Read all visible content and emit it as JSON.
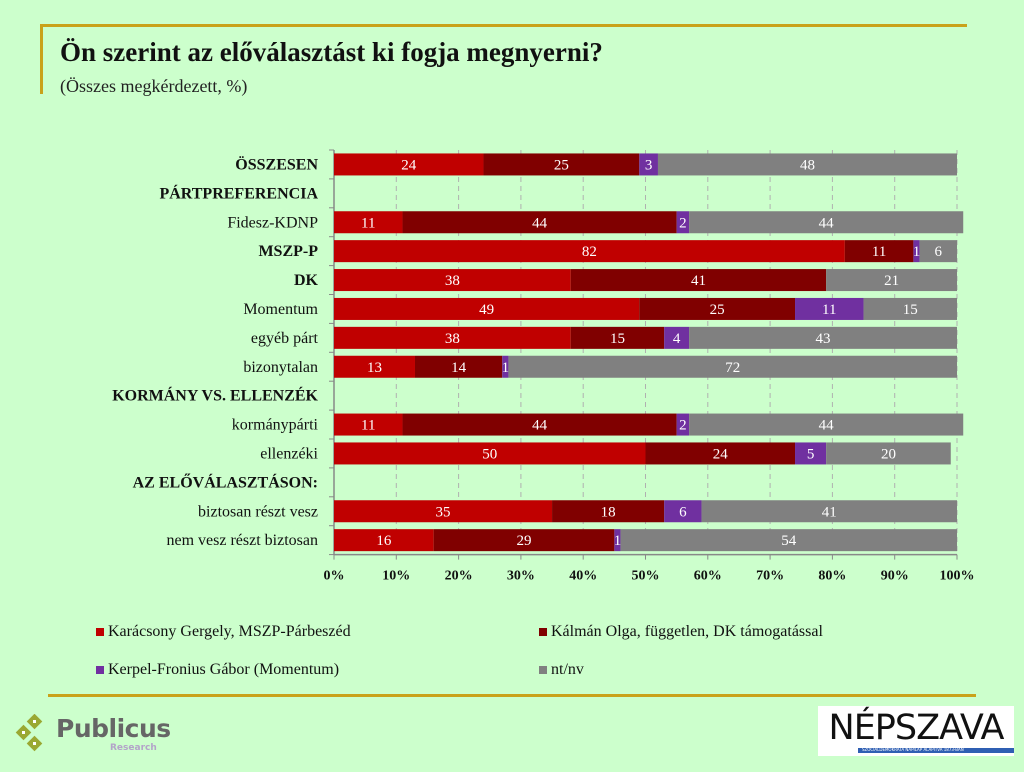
{
  "header": {
    "title": "Ön szerint az előválasztást ki fogja megnyerni?",
    "subtitle": "(Összes megkérdezett, %)"
  },
  "chart_data": {
    "type": "bar",
    "orientation": "horizontal",
    "stacked": "percent",
    "title": "Ön szerint az előválasztást ki fogja megnyerni?",
    "subtitle": "(Összes megkérdezett, %)",
    "categories": [
      "ÖSSZESEN",
      "PÁRTPREFERENCIA",
      "Fidesz-KDNP",
      "MSZP-P",
      "DK",
      "Momentum",
      "egyéb párt",
      "bizonytalan",
      "KORMÁNY VS. ELLENZÉK",
      "kormánypárti",
      "ellenzéki",
      "AZ ELŐVÁLASZTÁSON:",
      "biztosan részt vesz",
      "nem vesz részt biztosan"
    ],
    "bold_categories": [
      "ÖSSZESEN",
      "PÁRTPREFERENCIA",
      "MSZP-P",
      "DK",
      "KORMÁNY VS. ELLENZÉK",
      "AZ ELŐVÁLASZTÁSON:"
    ],
    "series": [
      {
        "name": "Karácsony Gergely, MSZP-Párbeszéd",
        "color": "#c00000",
        "values": [
          24,
          null,
          11,
          82,
          38,
          49,
          38,
          13,
          null,
          11,
          50,
          null,
          35,
          16
        ]
      },
      {
        "name": "Kálmán Olga, független, DK támogatással",
        "color": "#800000",
        "values": [
          25,
          null,
          44,
          11,
          41,
          25,
          15,
          14,
          null,
          44,
          24,
          null,
          18,
          29
        ]
      },
      {
        "name": "Kerpel-Fronius Gábor (Momentum)",
        "color": "#7030a0",
        "values": [
          3,
          null,
          2,
          1,
          null,
          11,
          4,
          1,
          null,
          2,
          5,
          null,
          6,
          1
        ]
      },
      {
        "name": "nt/nv",
        "color": "#808080",
        "values": [
          48,
          null,
          44,
          6,
          21,
          15,
          43,
          72,
          null,
          44,
          20,
          null,
          41,
          54
        ]
      }
    ],
    "xlim": [
      0,
      100
    ],
    "xticks": [
      "0%",
      "10%",
      "20%",
      "30%",
      "40%",
      "50%",
      "60%",
      "70%",
      "80%",
      "90%",
      "100%"
    ],
    "grid": "vertical dashed",
    "legend": "bottom",
    "label_color": "#ffffff"
  },
  "footer": {
    "publicus_logo": "Publicus",
    "publicus_sub": "Research",
    "nepszava_logo": "NÉPSZAVA",
    "nepszava_tagline": "SZOCIÁLDEMOKRATA NAPILAP    ALAPÍTVA 1873-BAN"
  }
}
